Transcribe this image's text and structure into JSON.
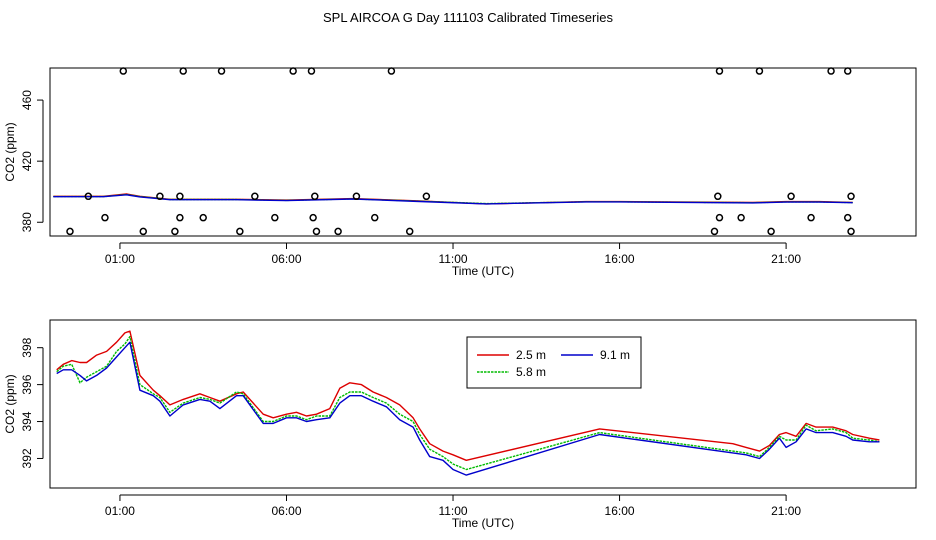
{
  "title": "SPL AIRCOA G  Day 111103  Calibrated Timeseries",
  "colors": {
    "s25": "#dd0000",
    "s58": "#00bb00",
    "s91": "#0000cc"
  },
  "chart_data": [
    {
      "type": "scatter+line",
      "xlabel": "Time (UTC)",
      "ylabel": "CO2 (ppm)",
      "x_ticks": [
        1,
        6,
        11,
        16,
        21
      ],
      "x_tick_labels": [
        "01:00",
        "06:00",
        "11:00",
        "16:00",
        "21:00"
      ],
      "xlim": [
        -1.1,
        24.9
      ],
      "y_ticks": [
        380,
        420,
        460
      ],
      "y_tick_labels": [
        "380",
        "420",
        "460"
      ],
      "ylim": [
        371,
        481
      ],
      "points": [
        [
          -0.5,
          374
        ],
        [
          0.05,
          397
        ],
        [
          0.55,
          383
        ],
        [
          1.1,
          479
        ],
        [
          1.7,
          374
        ],
        [
          2.2,
          397
        ],
        [
          2.65,
          374
        ],
        [
          2.8,
          383
        ],
        [
          2.8,
          397
        ],
        [
          2.9,
          479
        ],
        [
          3.5,
          383
        ],
        [
          4.05,
          479
        ],
        [
          4.6,
          374
        ],
        [
          5.05,
          397
        ],
        [
          5.65,
          383
        ],
        [
          6.2,
          479
        ],
        [
          6.75,
          479
        ],
        [
          6.8,
          383
        ],
        [
          6.85,
          397
        ],
        [
          6.9,
          374
        ],
        [
          7.55,
          374
        ],
        [
          8.1,
          397
        ],
        [
          8.65,
          383
        ],
        [
          9.15,
          479
        ],
        [
          9.7,
          374
        ],
        [
          10.2,
          397
        ],
        [
          18.85,
          374
        ],
        [
          18.95,
          397
        ],
        [
          19.0,
          383
        ],
        [
          19.0,
          479
        ],
        [
          19.65,
          383
        ],
        [
          20.2,
          479
        ],
        [
          20.55,
          374
        ],
        [
          21.15,
          397
        ],
        [
          21.75,
          383
        ],
        [
          22.35,
          479
        ],
        [
          22.85,
          479
        ],
        [
          22.85,
          383
        ],
        [
          22.95,
          397
        ],
        [
          22.95,
          374
        ]
      ],
      "series": [
        {
          "name": "2.5 m",
          "x": [
            -1,
            0.5,
            1.2,
            1.6,
            2.5,
            4.5,
            6,
            8,
            10,
            12,
            15,
            16,
            20,
            21,
            22,
            23
          ],
          "y": [
            397,
            397,
            398.5,
            397,
            395,
            395,
            394.5,
            395.5,
            394,
            392,
            393.5,
            393.5,
            393,
            393.5,
            393.5,
            393
          ]
        },
        {
          "name": "5.8 m",
          "x": [
            -1,
            0.5,
            1.2,
            1.6,
            2.5,
            4.5,
            6,
            8,
            10,
            12,
            15,
            16,
            20,
            21,
            22,
            23
          ],
          "y": [
            396.8,
            396.8,
            398.2,
            396.8,
            394.9,
            394.9,
            394.3,
            395.3,
            393.8,
            392.2,
            393.4,
            393.4,
            392.8,
            393.3,
            393.3,
            392.9
          ]
        },
        {
          "name": "9.1 m",
          "x": [
            -1,
            0.5,
            1.2,
            1.6,
            2.5,
            4.5,
            6,
            8,
            10,
            12,
            15,
            16,
            20,
            21,
            22,
            23
          ],
          "y": [
            396.7,
            396.7,
            398,
            396.6,
            394.8,
            394.8,
            394.2,
            395.2,
            393.6,
            392,
            393.3,
            393.3,
            392.7,
            393.2,
            393.2,
            392.8
          ]
        }
      ]
    },
    {
      "type": "line",
      "xlabel": "Time (UTC)",
      "ylabel": "CO2 (ppm)",
      "x_ticks": [
        1,
        6,
        11,
        16,
        21
      ],
      "x_tick_labels": [
        "01:00",
        "06:00",
        "11:00",
        "16:00",
        "21:00"
      ],
      "xlim": [
        -1.1,
        24.9
      ],
      "y_ticks": [
        392,
        394,
        396,
        398
      ],
      "y_tick_labels": [
        "392",
        "394",
        "396",
        "398"
      ],
      "ylim": [
        390.4,
        399.5
      ],
      "legend": [
        "2.5 m",
        "9.1 m",
        "5.8 m"
      ],
      "legend_position": "top-center",
      "series": [
        {
          "name": "2.5 m",
          "x": [
            -0.9,
            -0.7,
            -0.45,
            -0.2,
            0,
            0.3,
            0.6,
            0.9,
            1.15,
            1.3,
            1.6,
            2.0,
            2.2,
            2.5,
            2.9,
            3.4,
            3.7,
            4.0,
            4.5,
            4.7,
            5.3,
            5.6,
            6.0,
            6.3,
            6.6,
            6.9,
            7.3,
            7.6,
            7.9,
            8.25,
            8.6,
            9.0,
            9.4,
            9.8,
            10.0,
            10.3,
            10.7,
            11.0,
            11.4,
            15.4,
            19.4,
            19.8,
            20.2,
            20.5,
            20.8,
            21.0,
            21.3,
            21.6,
            21.9,
            22.4,
            22.8,
            23.0,
            23.5,
            23.8
          ],
          "y": [
            396.8,
            397.1,
            397.3,
            397.2,
            397.2,
            397.6,
            397.8,
            398.3,
            398.8,
            398.9,
            396.5,
            395.7,
            395.4,
            394.9,
            395.2,
            395.5,
            395.3,
            395.1,
            395.5,
            395.6,
            394.4,
            394.2,
            394.4,
            394.5,
            394.3,
            394.4,
            394.7,
            395.8,
            396.1,
            396.0,
            395.6,
            395.3,
            394.9,
            394.2,
            393.6,
            392.8,
            392.4,
            392.2,
            391.9,
            393.6,
            392.8,
            392.6,
            392.4,
            392.7,
            393.3,
            393.4,
            393.2,
            393.9,
            393.7,
            393.7,
            393.5,
            393.3,
            393.1,
            393.0
          ]
        },
        {
          "name": "5.8 m",
          "x": [
            -0.9,
            -0.7,
            -0.45,
            -0.2,
            0,
            0.3,
            0.6,
            0.9,
            1.15,
            1.3,
            1.6,
            2.0,
            2.2,
            2.5,
            2.9,
            3.4,
            3.7,
            4.0,
            4.5,
            4.7,
            5.3,
            5.6,
            6.0,
            6.3,
            6.6,
            6.9,
            7.3,
            7.6,
            7.9,
            8.25,
            8.6,
            9.0,
            9.4,
            9.8,
            10.0,
            10.3,
            10.7,
            11.0,
            11.4,
            15.4,
            19.4,
            19.8,
            20.2,
            20.5,
            20.8,
            21.0,
            21.3,
            21.6,
            21.9,
            22.4,
            22.8,
            23.0,
            23.5,
            23.8
          ],
          "y": [
            396.7,
            397.0,
            397.1,
            396.1,
            396.4,
            396.7,
            397.0,
            397.8,
            398.2,
            398.6,
            396.0,
            395.5,
            395.3,
            394.5,
            395.0,
            395.3,
            395.2,
            395.0,
            395.6,
            395.5,
            394.0,
            394.0,
            394.3,
            394.3,
            394.1,
            394.3,
            394.3,
            395.3,
            395.6,
            395.6,
            395.3,
            395.0,
            394.4,
            394.0,
            393.3,
            392.5,
            392.1,
            391.7,
            391.4,
            393.4,
            392.4,
            392.3,
            392.1,
            392.6,
            393.2,
            393.0,
            393.0,
            393.8,
            393.5,
            393.6,
            393.4,
            393.1,
            393.0,
            392.9
          ]
        },
        {
          "name": "9.1 m",
          "x": [
            -0.9,
            -0.7,
            -0.45,
            -0.2,
            0,
            0.3,
            0.6,
            0.9,
            1.15,
            1.3,
            1.6,
            2.0,
            2.2,
            2.5,
            2.9,
            3.4,
            3.7,
            4.0,
            4.5,
            4.7,
            5.3,
            5.6,
            6.0,
            6.3,
            6.6,
            6.9,
            7.3,
            7.6,
            7.9,
            8.25,
            8.6,
            9.0,
            9.4,
            9.8,
            10.0,
            10.3,
            10.7,
            11.0,
            11.4,
            15.4,
            19.4,
            19.8,
            20.2,
            20.5,
            20.8,
            21.0,
            21.3,
            21.6,
            21.9,
            22.4,
            22.8,
            23.0,
            23.5,
            23.8
          ],
          "y": [
            396.6,
            396.8,
            396.8,
            396.5,
            396.2,
            396.5,
            396.9,
            397.5,
            398.0,
            398.3,
            395.7,
            395.4,
            395.1,
            394.3,
            394.9,
            395.2,
            395.1,
            394.7,
            395.4,
            395.4,
            393.9,
            393.9,
            394.2,
            394.2,
            394.0,
            394.1,
            394.2,
            395.0,
            395.4,
            395.4,
            395.1,
            394.8,
            394.1,
            393.7,
            393.0,
            392.1,
            391.9,
            391.4,
            391.1,
            393.3,
            392.3,
            392.2,
            392.0,
            392.5,
            393.1,
            392.6,
            392.9,
            393.6,
            393.4,
            393.4,
            393.2,
            393.0,
            392.9,
            392.9
          ]
        }
      ]
    }
  ]
}
